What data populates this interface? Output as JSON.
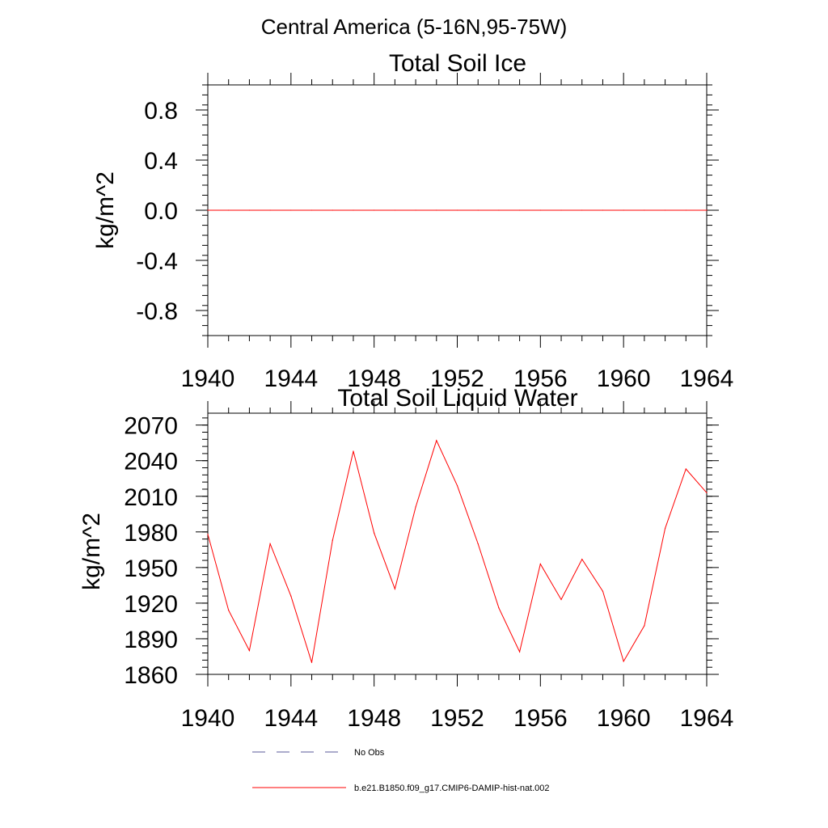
{
  "figure": {
    "title": "Central America (5-16N,95-75W)"
  },
  "chart_data": [
    {
      "type": "line",
      "title": "Total Soil Ice",
      "ylabel": "kg/m^2",
      "xlabel": "",
      "xlim": [
        1940,
        1964
      ],
      "ylim": [
        -1.0,
        1.0
      ],
      "x_ticks": [
        1940,
        1944,
        1948,
        1952,
        1956,
        1960,
        1964
      ],
      "x_tick_labels": [
        "1940",
        "1944",
        "1948",
        "1952",
        "1956",
        "1960",
        "1964"
      ],
      "y_ticks": [
        0.8,
        0.4,
        0.0,
        -0.4,
        -0.8
      ],
      "y_tick_labels": [
        "0.8",
        "0.4",
        "0.0",
        "-0.4",
        "-0.8"
      ],
      "grid": false,
      "series": [
        {
          "name": "b.e21.B1850.f09_g17.CMIP6-DAMIP-hist-nat.002",
          "color": "#ff0000",
          "x": [
            1940,
            1941,
            1942,
            1943,
            1944,
            1945,
            1946,
            1947,
            1948,
            1949,
            1950,
            1951,
            1952,
            1953,
            1954,
            1955,
            1956,
            1957,
            1958,
            1959,
            1960,
            1961,
            1962,
            1963,
            1964
          ],
          "values": [
            0,
            0,
            0,
            0,
            0,
            0,
            0,
            0,
            0,
            0,
            0,
            0,
            0,
            0,
            0,
            0,
            0,
            0,
            0,
            0,
            0,
            0,
            0,
            0,
            0
          ]
        }
      ]
    },
    {
      "type": "line",
      "title": "Total Soil Liquid Water",
      "ylabel": "kg/m^2",
      "xlabel": "",
      "xlim": [
        1940,
        1964
      ],
      "ylim": [
        1860,
        2080
      ],
      "x_ticks": [
        1940,
        1944,
        1948,
        1952,
        1956,
        1960,
        1964
      ],
      "x_tick_labels": [
        "1940",
        "1944",
        "1948",
        "1952",
        "1956",
        "1960",
        "1964"
      ],
      "y_ticks": [
        2070,
        2040,
        2010,
        1980,
        1950,
        1920,
        1890,
        1860
      ],
      "y_tick_labels": [
        "2070",
        "2040",
        "2010",
        "1980",
        "1950",
        "1920",
        "1890",
        "1860"
      ],
      "grid": false,
      "series": [
        {
          "name": "b.e21.B1850.f09_g17.CMIP6-DAMIP-hist-nat.002",
          "color": "#ff0000",
          "x": [
            1940,
            1941,
            1942,
            1943,
            1944,
            1945,
            1946,
            1947,
            1948,
            1949,
            1950,
            1951,
            1952,
            1953,
            1954,
            1955,
            1956,
            1957,
            1958,
            1959,
            1960,
            1961,
            1962,
            1963,
            1964
          ],
          "values": [
            1978,
            1914,
            1880,
            1970,
            1926,
            1870,
            1973,
            2048,
            1979,
            1932,
            2001,
            2057,
            2019,
            1970,
            1916,
            1879,
            1953,
            1923,
            1957,
            1930,
            1871,
            1901,
            1983,
            2033,
            2013
          ]
        }
      ]
    }
  ],
  "legend": {
    "items": [
      {
        "label": "No Obs",
        "color": "#5a5a9a",
        "style": "dashed"
      },
      {
        "label": "b.e21.B1850.f09_g17.CMIP6-DAMIP-hist-nat.002",
        "color": "#ff0000",
        "style": "solid"
      }
    ]
  }
}
